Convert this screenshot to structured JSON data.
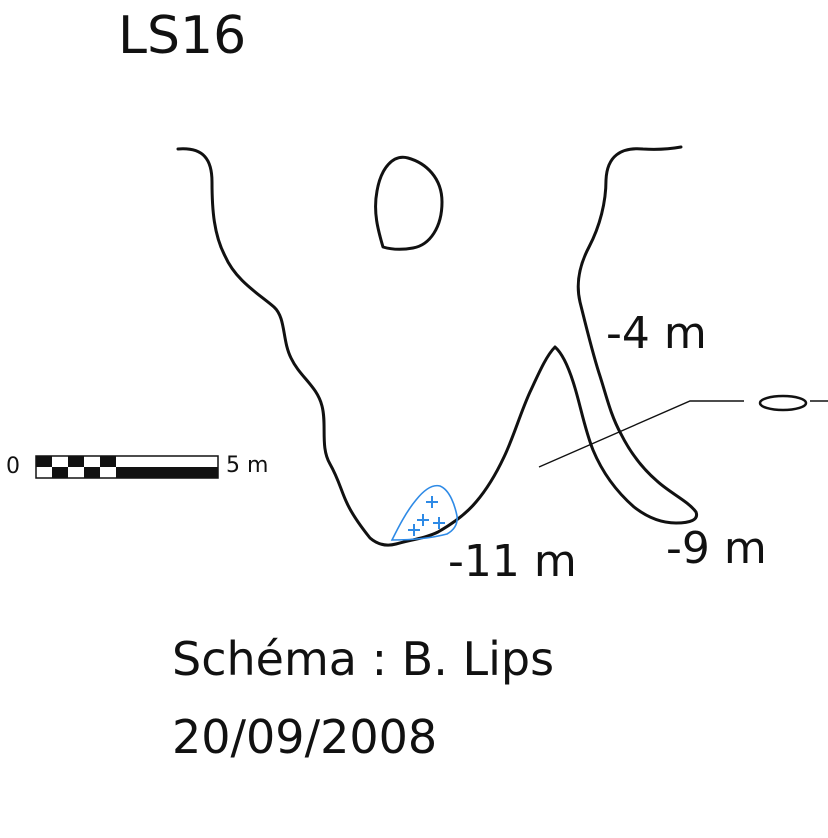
{
  "title": "LS16",
  "depths": {
    "upper": "-4 m",
    "right": "-9 m",
    "bottom": "-11 m"
  },
  "scale_bar": {
    "start_label": "0",
    "end_label": "5 m"
  },
  "credit": {
    "author": "Schéma : B. Lips",
    "date": "20/09/2008"
  },
  "colors": {
    "line": "#111111",
    "water": "#2e8ae6",
    "background": "#ffffff"
  },
  "icons": {
    "water_symbol": "plus-sign"
  }
}
